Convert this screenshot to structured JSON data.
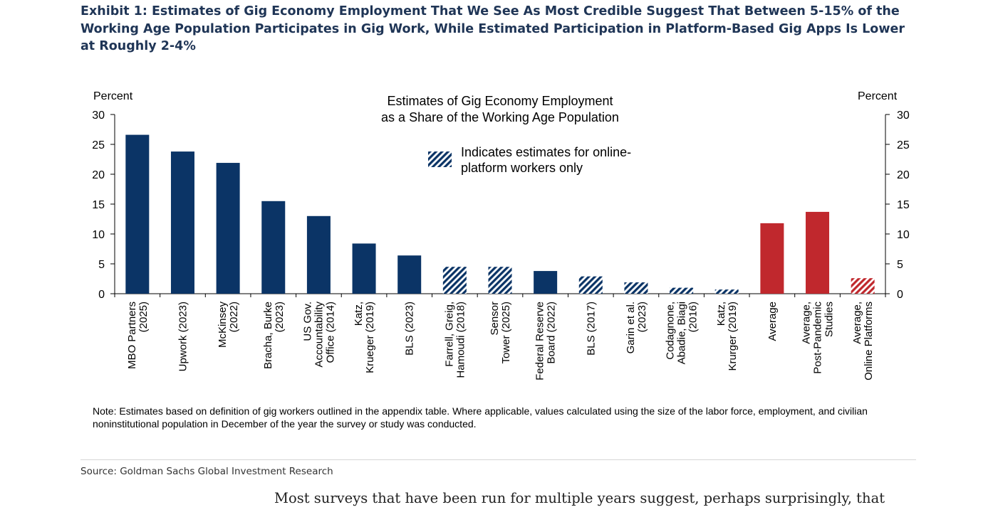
{
  "exhibit": {
    "title": "Exhibit 1: Estimates of Gig Economy Employment That We See As Most Credible Suggest That Between 5-15% of the Working Age Population Participates in Gig Work, While Estimated Participation in Platform-Based Gig Apps Is Lower at Roughly 2-4%"
  },
  "chart_data": {
    "type": "bar",
    "title": [
      "Estimates of Gig Economy Employment",
      "as a Share of the Working Age Population"
    ],
    "ylabel_left": "Percent",
    "ylabel_right": "Percent",
    "ylim": [
      0,
      30
    ],
    "yticks": [
      0,
      5,
      10,
      15,
      20,
      25,
      30
    ],
    "legend": {
      "label": [
        "Indicates estimates for online-",
        "platform workers only"
      ],
      "placement": "top-center"
    },
    "colors": {
      "navy": "#0b3466",
      "red": "#c0282d"
    },
    "bars": [
      {
        "category": [
          "MBO Partners",
          "(2025)"
        ],
        "value": 26.6,
        "color": "navy",
        "hatched": false
      },
      {
        "category": [
          "Upwork (2023)"
        ],
        "value": 23.8,
        "color": "navy",
        "hatched": false
      },
      {
        "category": [
          "McKinsey",
          "(2022)"
        ],
        "value": 21.9,
        "color": "navy",
        "hatched": false
      },
      {
        "category": [
          "Bracha, Burke",
          "(2023)"
        ],
        "value": 15.5,
        "color": "navy",
        "hatched": false
      },
      {
        "category": [
          "US Gov.",
          "Accountability",
          "Office (2014)"
        ],
        "value": 13.0,
        "color": "navy",
        "hatched": false
      },
      {
        "category": [
          "Katz,",
          "Krueger (2019)"
        ],
        "value": 8.4,
        "color": "navy",
        "hatched": false
      },
      {
        "category": [
          "BLS (2023)"
        ],
        "value": 6.4,
        "color": "navy",
        "hatched": false
      },
      {
        "category": [
          "Farrell, Greig,",
          "Hamoudi (2018)"
        ],
        "value": 4.5,
        "color": "navy",
        "hatched": true
      },
      {
        "category": [
          "Sensor",
          "Tower (2025)"
        ],
        "value": 4.5,
        "color": "navy",
        "hatched": true
      },
      {
        "category": [
          "Federal Reserve",
          "Board (2022)"
        ],
        "value": 3.8,
        "color": "navy",
        "hatched": false
      },
      {
        "category": [
          "BLS (2017)"
        ],
        "value": 2.9,
        "color": "navy",
        "hatched": true
      },
      {
        "category": [
          "Garin et al.",
          "(2023)"
        ],
        "value": 1.9,
        "color": "navy",
        "hatched": true
      },
      {
        "category": [
          "Codagnone,",
          "Abadie, Biagi",
          "(2016)"
        ],
        "value": 1.0,
        "color": "navy",
        "hatched": true
      },
      {
        "category": [
          "Katz,",
          "Krurger (2019)"
        ],
        "value": 0.7,
        "color": "navy",
        "hatched": true
      },
      {
        "category": [
          "Average"
        ],
        "value": 11.8,
        "color": "red",
        "hatched": false
      },
      {
        "category": [
          "Average,",
          "Post-Pandemic",
          "Studies"
        ],
        "value": 13.7,
        "color": "red",
        "hatched": false
      },
      {
        "category": [
          "Average,",
          "Online Platforms"
        ],
        "value": 2.6,
        "color": "red",
        "hatched": true
      }
    ]
  },
  "note": "Note: Estimates based on definition of gig workers outlined in the appendix table. Where applicable, values calculated using the size of the labor force, employment, and civilian noninstitutional population in December of the year the survey or study was conducted.",
  "source": "Source: Goldman Sachs Global Investment Research",
  "body_text": "Most surveys that have been run for multiple years suggest, perhaps surprisingly, that"
}
